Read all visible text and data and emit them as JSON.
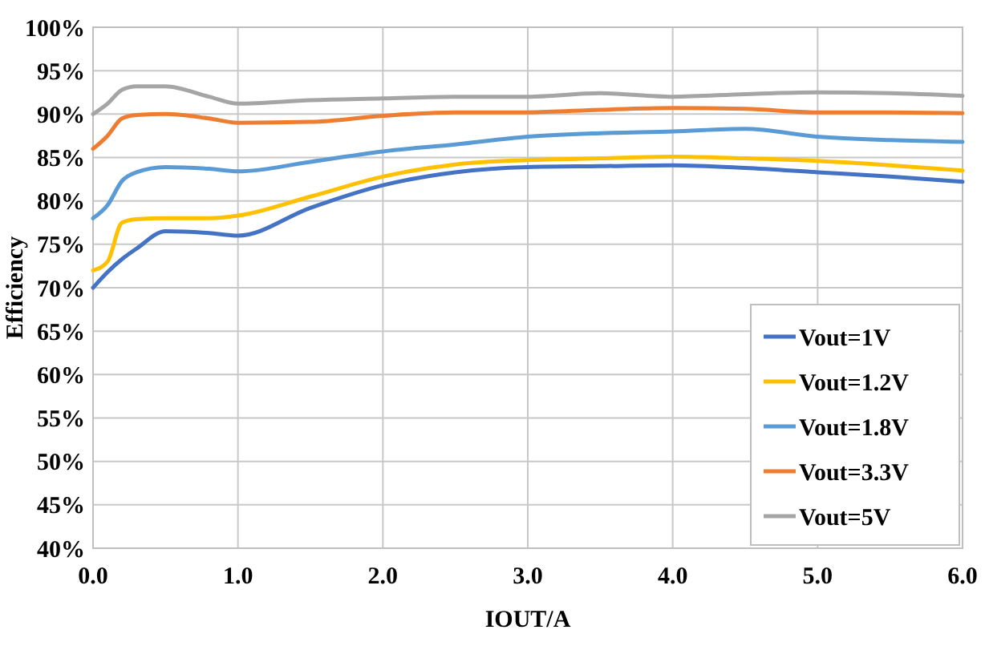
{
  "chart_data": {
    "type": "line",
    "xlabel": "IOUT/A",
    "ylabel": "Efficiency",
    "x": [
      0,
      0.1,
      0.2,
      0.3,
      0.5,
      0.8,
      1.0,
      1.5,
      2.0,
      2.5,
      3.0,
      3.5,
      4.0,
      4.5,
      5.0,
      5.5,
      6.0
    ],
    "series": [
      {
        "name": "Vout=1V",
        "color": "#4472c4",
        "values": [
          70,
          71.8,
          73.3,
          74.5,
          76.5,
          76.3,
          76,
          79.2,
          81.8,
          83.3,
          83.9,
          84,
          84.1,
          83.8,
          83.3,
          82.8,
          82.2
        ]
      },
      {
        "name": "Vout=1.2V",
        "color": "#ffc000",
        "values": [
          72,
          73,
          77.5,
          77.9,
          78,
          78,
          78.3,
          80.5,
          82.8,
          84.2,
          84.7,
          84.9,
          85.1,
          84.9,
          84.6,
          84.1,
          83.5
        ]
      },
      {
        "name": "Vout=1.8V",
        "color": "#5b9bd5",
        "values": [
          78,
          79.5,
          82.3,
          83.3,
          83.9,
          83.7,
          83.4,
          84.5,
          85.7,
          86.5,
          87.4,
          87.8,
          88,
          88.3,
          87.4,
          87,
          86.8
        ]
      },
      {
        "name": "Vout=3.3V",
        "color": "#ed7d31",
        "values": [
          86,
          87.5,
          89.5,
          89.9,
          90,
          89.5,
          89,
          89.1,
          89.8,
          90.2,
          90.2,
          90.5,
          90.7,
          90.6,
          90.2,
          90.2,
          90.1
        ]
      },
      {
        "name": "Vout=5V",
        "color": "#a5a5a5",
        "values": [
          90,
          91.2,
          92.8,
          93.2,
          93.2,
          92,
          91.2,
          91.6,
          91.8,
          92,
          92,
          92.4,
          92,
          92.3,
          92.5,
          92.4,
          92.1
        ]
      }
    ],
    "xlim": [
      0,
      6
    ],
    "xticks": [
      {
        "value": 0,
        "label": "0.0"
      },
      {
        "value": 1,
        "label": "1.0"
      },
      {
        "value": 2,
        "label": "2.0"
      },
      {
        "value": 3,
        "label": "3.0"
      },
      {
        "value": 4,
        "label": "4.0"
      },
      {
        "value": 5,
        "label": "5.0"
      },
      {
        "value": 6,
        "label": "6.0"
      }
    ],
    "ylim": [
      40,
      100
    ],
    "yticks": [
      {
        "value": 40,
        "label": "40%"
      },
      {
        "value": 45,
        "label": "45%"
      },
      {
        "value": 50,
        "label": "50%"
      },
      {
        "value": 55,
        "label": "55%"
      },
      {
        "value": 60,
        "label": "60%"
      },
      {
        "value": 65,
        "label": "65%"
      },
      {
        "value": 70,
        "label": "70%"
      },
      {
        "value": 75,
        "label": "75%"
      },
      {
        "value": 80,
        "label": "80%"
      },
      {
        "value": 85,
        "label": "85%"
      },
      {
        "value": 90,
        "label": "90%"
      },
      {
        "value": 95,
        "label": "95%"
      },
      {
        "value": 100,
        "label": "100%"
      }
    ],
    "grid": true,
    "legend": "bottom right",
    "marker": "none",
    "line_style": "solid"
  }
}
